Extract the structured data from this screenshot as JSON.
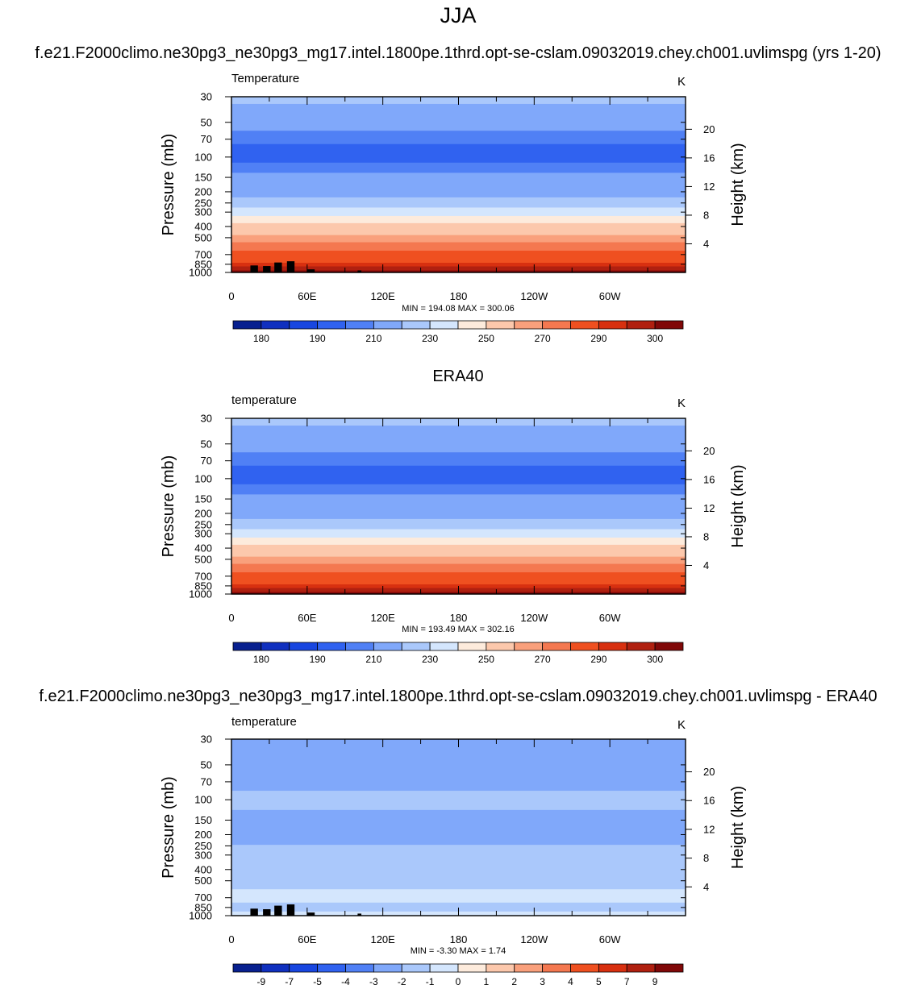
{
  "figure": {
    "season": "JJA",
    "case_title": "f.e21.F2000climo.ne30pg3_ne30pg3_mg17.intel.1800pe.1thrd.opt-se-cslam.09032019.chey.ch001.uvlimspg (yrs 1-20)",
    "obs_title": "ERA40",
    "diff_title": "f.e21.F2000climo.ne30pg3_ne30pg3_mg17.intel.1800pe.1thrd.opt-se-cslam.09032019.chey.ch001.uvlimspg - ERA40"
  },
  "colors": {
    "land_black": "#000000",
    "palette": [
      "#08208f",
      "#1030bf",
      "#1846e0",
      "#3062f0",
      "#5080f5",
      "#80a8fa",
      "#aac8fb",
      "#d4e6fd",
      "#fdebdc",
      "#fcc8ac",
      "#f9a07c",
      "#f47850",
      "#ef5020",
      "#d83010",
      "#b02010",
      "#800808"
    ]
  },
  "chart_data": [
    {
      "type": "heatmap",
      "name": "model",
      "left_label": "Temperature",
      "units": "K",
      "ylabel": "Pressure (mb)",
      "y2label": "Height (km)",
      "pressure_ticks": [
        30,
        50,
        70,
        100,
        150,
        200,
        250,
        300,
        400,
        500,
        700,
        850,
        1000
      ],
      "height_ticks": [
        20,
        16,
        12,
        8,
        4
      ],
      "x_ticks": [
        "0",
        "60E",
        "120E",
        "180",
        "120W",
        "60W"
      ],
      "xlim": [
        0,
        360
      ],
      "ylim": [
        1000,
        30
      ],
      "stats": "MIN = 194.08  MAX = 300.06",
      "min": 194.08,
      "max": 300.06,
      "colorbar_labels": [
        "180",
        "190",
        "210",
        "230",
        "250",
        "270",
        "290",
        "300"
      ],
      "levels": [
        {
          "p": 30,
          "v": 221
        },
        {
          "p": 40,
          "v": 218
        },
        {
          "p": 50,
          "v": 214
        },
        {
          "p": 70,
          "v": 208
        },
        {
          "p": 85,
          "v": 199
        },
        {
          "p": 100,
          "v": 198
        },
        {
          "p": 125,
          "v": 202
        },
        {
          "p": 150,
          "v": 211
        },
        {
          "p": 200,
          "v": 218
        },
        {
          "p": 250,
          "v": 228
        },
        {
          "p": 300,
          "v": 238
        },
        {
          "p": 350,
          "v": 246
        },
        {
          "p": 400,
          "v": 253
        },
        {
          "p": 450,
          "v": 258
        },
        {
          "p": 500,
          "v": 264
        },
        {
          "p": 600,
          "v": 272
        },
        {
          "p": 700,
          "v": 280
        },
        {
          "p": 800,
          "v": 287
        },
        {
          "p": 850,
          "v": 291
        },
        {
          "p": 925,
          "v": 296
        },
        {
          "p": 1000,
          "v": 300
        }
      ],
      "terrain": [
        [
          15,
          870
        ],
        [
          25,
          880
        ],
        [
          44,
          800
        ],
        [
          34,
          820
        ],
        [
          100,
          960
        ],
        [
          60,
          940
        ],
        [
          133,
          1000
        ]
      ]
    },
    {
      "type": "heatmap",
      "name": "obs",
      "left_label": "temperature",
      "units": "K",
      "ylabel": "Pressure (mb)",
      "y2label": "Height (km)",
      "pressure_ticks": [
        30,
        50,
        70,
        100,
        150,
        200,
        250,
        300,
        400,
        500,
        700,
        850,
        1000
      ],
      "height_ticks": [
        20,
        16,
        12,
        8,
        4
      ],
      "x_ticks": [
        "0",
        "60E",
        "120E",
        "180",
        "120W",
        "60W"
      ],
      "xlim": [
        0,
        360
      ],
      "ylim": [
        1000,
        30
      ],
      "stats": "MIN = 193.49  MAX = 302.16",
      "min": 193.49,
      "max": 302.16,
      "colorbar_labels": [
        "180",
        "190",
        "210",
        "230",
        "250",
        "270",
        "290",
        "300"
      ],
      "levels": [
        {
          "p": 30,
          "v": 221
        },
        {
          "p": 40,
          "v": 218
        },
        {
          "p": 50,
          "v": 214
        },
        {
          "p": 70,
          "v": 207
        },
        {
          "p": 85,
          "v": 199
        },
        {
          "p": 100,
          "v": 197
        },
        {
          "p": 125,
          "v": 203
        },
        {
          "p": 150,
          "v": 211
        },
        {
          "p": 200,
          "v": 218
        },
        {
          "p": 250,
          "v": 228
        },
        {
          "p": 300,
          "v": 238
        },
        {
          "p": 350,
          "v": 247
        },
        {
          "p": 400,
          "v": 254
        },
        {
          "p": 450,
          "v": 259
        },
        {
          "p": 500,
          "v": 265
        },
        {
          "p": 600,
          "v": 273
        },
        {
          "p": 700,
          "v": 281
        },
        {
          "p": 800,
          "v": 288
        },
        {
          "p": 850,
          "v": 292
        },
        {
          "p": 925,
          "v": 297
        },
        {
          "p": 1000,
          "v": 302
        }
      ],
      "terrain": []
    },
    {
      "type": "heatmap",
      "name": "difference",
      "left_label": "temperature",
      "units": "K",
      "ylabel": "Pressure (mb)",
      "y2label": "Height (km)",
      "pressure_ticks": [
        30,
        50,
        70,
        100,
        150,
        200,
        250,
        300,
        400,
        500,
        700,
        850,
        1000
      ],
      "height_ticks": [
        20,
        16,
        12,
        8,
        4
      ],
      "x_ticks": [
        "0",
        "60E",
        "120E",
        "180",
        "120W",
        "60W"
      ],
      "xlim": [
        0,
        360
      ],
      "ylim": [
        1000,
        30
      ],
      "stats": "MIN =  -3.30  MAX =   1.74",
      "min": -3.3,
      "max": 1.74,
      "colorbar_labels": [
        "-9",
        "-7",
        "-5",
        "-4",
        "-3",
        "-2",
        "-1",
        "0",
        "1",
        "2",
        "3",
        "4",
        "5",
        "7",
        "9"
      ],
      "levels": [
        {
          "p": 30,
          "v": -2.4
        },
        {
          "p": 50,
          "v": -2.4
        },
        {
          "p": 70,
          "v": -1.6
        },
        {
          "p": 100,
          "v": -1.3
        },
        {
          "p": 150,
          "v": -2.1
        },
        {
          "p": 200,
          "v": -2.2
        },
        {
          "p": 300,
          "v": -1.4
        },
        {
          "p": 400,
          "v": -1.1
        },
        {
          "p": 500,
          "v": -0.6
        },
        {
          "p": 700,
          "v": -0.5
        },
        {
          "p": 850,
          "v": -0.7
        },
        {
          "p": 1000,
          "v": -0.5
        }
      ],
      "terrain": [
        [
          15,
          870
        ],
        [
          25,
          880
        ],
        [
          44,
          800
        ],
        [
          34,
          820
        ],
        [
          100,
          960
        ],
        [
          60,
          940
        ],
        [
          133,
          1000
        ]
      ]
    }
  ]
}
